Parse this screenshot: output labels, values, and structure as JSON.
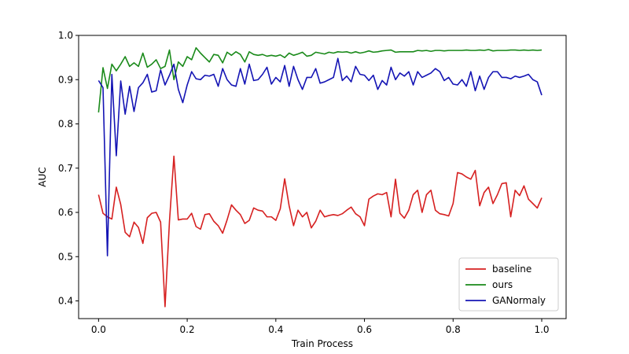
{
  "chart_data": {
    "type": "line",
    "title": "",
    "xlabel": "Train Process",
    "ylabel": "AUC",
    "xlim": [
      -0.045,
      1.055
    ],
    "ylim": [
      0.36,
      1.0
    ],
    "xticks": [
      0.0,
      0.2,
      0.4,
      0.6,
      0.8,
      1.0
    ],
    "xtick_labels": [
      "0.0",
      "0.2",
      "0.4",
      "0.6",
      "0.8",
      "1.0"
    ],
    "yticks": [
      0.4,
      0.5,
      0.6,
      0.7,
      0.8,
      0.9,
      1.0
    ],
    "ytick_labels": [
      "0.4",
      "0.5",
      "0.6",
      "0.7",
      "0.8",
      "0.9",
      "1.0"
    ],
    "grid": false,
    "legend_position": "lower-right",
    "x_start": 0.0,
    "x_step": 0.01,
    "series": [
      {
        "name": "baseline",
        "color": "#d62020",
        "values": [
          0.64,
          0.598,
          0.59,
          0.585,
          0.657,
          0.618,
          0.555,
          0.545,
          0.578,
          0.566,
          0.53,
          0.588,
          0.598,
          0.6,
          0.578,
          0.387,
          0.58,
          0.727,
          0.583,
          0.585,
          0.585,
          0.598,
          0.568,
          0.562,
          0.595,
          0.597,
          0.58,
          0.57,
          0.553,
          0.583,
          0.617,
          0.605,
          0.595,
          0.575,
          0.582,
          0.61,
          0.605,
          0.603,
          0.59,
          0.59,
          0.582,
          0.608,
          0.676,
          0.615,
          0.57,
          0.605,
          0.59,
          0.6,
          0.565,
          0.58,
          0.605,
          0.59,
          0.593,
          0.595,
          0.593,
          0.597,
          0.605,
          0.612,
          0.597,
          0.59,
          0.57,
          0.63,
          0.637,
          0.642,
          0.64,
          0.645,
          0.59,
          0.675,
          0.598,
          0.587,
          0.605,
          0.64,
          0.65,
          0.6,
          0.64,
          0.65,
          0.605,
          0.597,
          0.595,
          0.592,
          0.62,
          0.69,
          0.687,
          0.68,
          0.675,
          0.695,
          0.615,
          0.645,
          0.657,
          0.62,
          0.64,
          0.665,
          0.667,
          0.59,
          0.65,
          0.638,
          0.66,
          0.63,
          0.62,
          0.61,
          0.633
        ]
      },
      {
        "name": "ours",
        "color": "#1a8a1a",
        "values": [
          0.826,
          0.927,
          0.88,
          0.935,
          0.92,
          0.935,
          0.952,
          0.93,
          0.938,
          0.93,
          0.96,
          0.928,
          0.935,
          0.945,
          0.925,
          0.93,
          0.967,
          0.9,
          0.94,
          0.93,
          0.952,
          0.945,
          0.972,
          0.96,
          0.95,
          0.94,
          0.957,
          0.955,
          0.938,
          0.962,
          0.955,
          0.963,
          0.957,
          0.94,
          0.963,
          0.957,
          0.955,
          0.957,
          0.953,
          0.955,
          0.953,
          0.956,
          0.95,
          0.96,
          0.955,
          0.958,
          0.962,
          0.953,
          0.955,
          0.962,
          0.96,
          0.958,
          0.962,
          0.96,
          0.963,
          0.962,
          0.963,
          0.96,
          0.963,
          0.96,
          0.962,
          0.965,
          0.962,
          0.963,
          0.965,
          0.966,
          0.967,
          0.962,
          0.963,
          0.963,
          0.963,
          0.963,
          0.966,
          0.965,
          0.966,
          0.964,
          0.966,
          0.966,
          0.965,
          0.966,
          0.966,
          0.966,
          0.966,
          0.967,
          0.966,
          0.966,
          0.967,
          0.966,
          0.968,
          0.965,
          0.966,
          0.966,
          0.966,
          0.967,
          0.967,
          0.966,
          0.967,
          0.966,
          0.967,
          0.966,
          0.967
        ]
      },
      {
        "name": "GANormaly",
        "color": "#1414b4",
        "values": [
          0.898,
          0.882,
          0.502,
          0.912,
          0.728,
          0.897,
          0.822,
          0.885,
          0.828,
          0.882,
          0.893,
          0.912,
          0.872,
          0.875,
          0.922,
          0.888,
          0.91,
          0.935,
          0.878,
          0.848,
          0.888,
          0.918,
          0.902,
          0.9,
          0.91,
          0.908,
          0.912,
          0.885,
          0.925,
          0.9,
          0.888,
          0.885,
          0.925,
          0.89,
          0.935,
          0.898,
          0.9,
          0.912,
          0.928,
          0.89,
          0.905,
          0.895,
          0.932,
          0.885,
          0.93,
          0.9,
          0.878,
          0.905,
          0.905,
          0.925,
          0.892,
          0.895,
          0.9,
          0.905,
          0.948,
          0.898,
          0.908,
          0.895,
          0.93,
          0.912,
          0.91,
          0.898,
          0.91,
          0.878,
          0.898,
          0.888,
          0.928,
          0.9,
          0.915,
          0.908,
          0.918,
          0.888,
          0.918,
          0.905,
          0.91,
          0.915,
          0.925,
          0.918,
          0.898,
          0.905,
          0.89,
          0.888,
          0.9,
          0.885,
          0.918,
          0.875,
          0.908,
          0.878,
          0.905,
          0.918,
          0.918,
          0.905,
          0.905,
          0.902,
          0.908,
          0.905,
          0.908,
          0.912,
          0.9,
          0.895,
          0.865
        ]
      }
    ]
  }
}
